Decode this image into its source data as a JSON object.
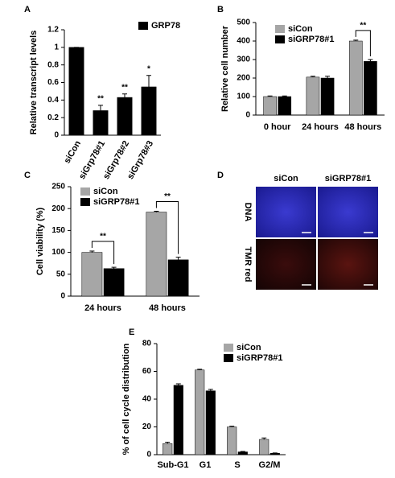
{
  "chart_data": [
    {
      "type": "bar",
      "panel": "A",
      "ylabel": "Relative transcript levels",
      "categories": [
        "siCon",
        "siGrp78#1",
        "siGrp78#2",
        "siGrp78#3"
      ],
      "series": [
        {
          "name": "GRP78",
          "color": "#000000",
          "values": [
            1,
            0.28,
            0.43,
            0.55
          ],
          "errors": [
            0,
            0.06,
            0.04,
            0.13
          ]
        }
      ],
      "significance": [
        null,
        "**",
        "**",
        "*"
      ],
      "ylim": [
        0,
        1.2
      ],
      "yticks": [
        0,
        0.2,
        0.4,
        0.6,
        0.8,
        1,
        1.2
      ],
      "rotate_labels": true
    },
    {
      "type": "bar",
      "panel": "B",
      "ylabel": "Relative cell number",
      "categories": [
        "0 hour",
        "24 hours",
        "48 hours"
      ],
      "series": [
        {
          "name": "siCon",
          "color": "#a6a6a6",
          "values": [
            100,
            205,
            400
          ],
          "errors": [
            3,
            5,
            5
          ]
        },
        {
          "name": "siGRP78#1",
          "color": "#000000",
          "values": [
            100,
            200,
            290
          ],
          "errors": [
            3,
            10,
            10
          ]
        }
      ],
      "significance": [
        null,
        null,
        "**"
      ],
      "ylim": [
        0,
        500
      ],
      "yticks": [
        0,
        100,
        200,
        300,
        400,
        500
      ]
    },
    {
      "type": "bar",
      "panel": "C",
      "ylabel": "Cell viability (%)",
      "categories": [
        "24 hours",
        "48 hours"
      ],
      "series": [
        {
          "name": "siCon",
          "color": "#a6a6a6",
          "values": [
            100,
            192
          ],
          "errors": [
            3,
            2
          ]
        },
        {
          "name": "siGRP78#1",
          "color": "#000000",
          "values": [
            63,
            83
          ],
          "errors": [
            3,
            6
          ]
        }
      ],
      "significance": [
        "**",
        "**"
      ],
      "ylim": [
        0,
        250
      ],
      "yticks": [
        0,
        50,
        100,
        150,
        200,
        250
      ]
    },
    {
      "type": "image",
      "panel": "D",
      "columns": [
        "siCon",
        "siGRP78#1"
      ],
      "rows": [
        "DNA",
        "TMR red"
      ]
    },
    {
      "type": "bar",
      "panel": "E",
      "ylabel": "% of cell cycle distribution",
      "categories": [
        "Sub-G1",
        "G1",
        "S",
        "G2/M"
      ],
      "series": [
        {
          "name": "siCon",
          "color": "#a6a6a6",
          "values": [
            8,
            61,
            20,
            11
          ],
          "errors": [
            1,
            0.5,
            0.5,
            1
          ]
        },
        {
          "name": "siGRP78#1",
          "color": "#000000",
          "values": [
            50,
            46,
            2,
            1
          ],
          "errors": [
            1,
            1,
            0.3,
            0.2
          ]
        }
      ],
      "ylim": [
        0,
        80
      ],
      "yticks": [
        0,
        20,
        40,
        60,
        80
      ]
    }
  ]
}
